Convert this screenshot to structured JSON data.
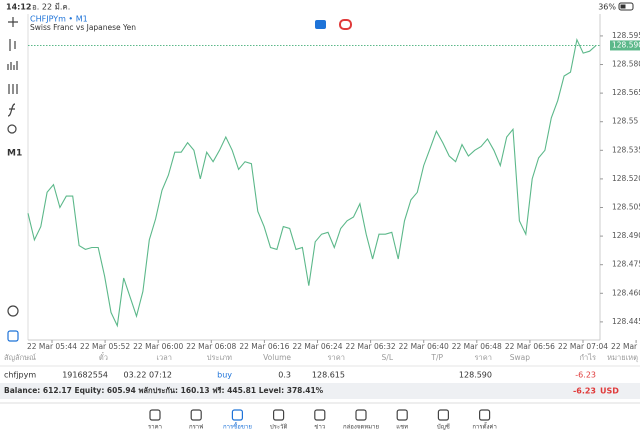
{
  "status_bar": {
    "time": "14:12",
    "date": "อ. 22 มี.ค.",
    "battery": "36%"
  },
  "toolbar": {
    "timeframe": "M1"
  },
  "chart": {
    "type": "line",
    "symbol_title": "CHFJPYm • M1",
    "subtitle": "Swiss Franc vs Japanese Yen",
    "color": "#5cb88a",
    "x_labels": [
      "22 Mar 05:44",
      "22 Mar 05:52",
      "22 Mar 06:00",
      "22 Mar 06:08",
      "22 Mar 06:16",
      "22 Mar 06:24",
      "22 Mar 06:32",
      "22 Mar 06:40",
      "22 Mar 06:48",
      "22 Mar 06:56",
      "22 Mar 07:04",
      "22 Mar 07:12"
    ],
    "values": [
      128.502,
      128.488,
      128.495,
      128.513,
      128.517,
      128.505,
      128.511,
      128.511,
      128.485,
      128.483,
      128.484,
      128.484,
      128.469,
      128.45,
      128.443,
      128.468,
      128.458,
      128.448,
      128.461,
      128.488,
      128.499,
      128.514,
      128.522,
      128.534,
      128.534,
      128.539,
      128.535,
      128.52,
      128.534,
      128.529,
      128.535,
      128.542,
      128.535,
      128.525,
      128.529,
      128.528,
      128.503,
      128.495,
      128.484,
      128.483,
      128.495,
      128.494,
      128.483,
      128.484,
      128.464,
      128.487,
      128.491,
      128.492,
      128.484,
      128.494,
      128.498,
      128.5,
      128.507,
      128.491,
      128.478,
      128.491,
      128.491,
      128.492,
      128.478,
      128.498,
      128.509,
      128.513,
      128.527,
      128.536,
      128.545,
      128.539,
      128.532,
      128.529,
      128.538,
      128.532,
      128.535,
      128.537,
      128.541,
      128.535,
      128.527,
      128.542,
      128.546,
      128.498,
      128.491,
      128.52,
      128.531,
      128.535,
      128.552,
      128.561,
      128.574,
      128.576,
      128.593,
      128.586,
      128.587,
      128.59
    ],
    "ylim": [
      128.4355,
      128.6065
    ],
    "yticks": [
      128.595,
      {
        "value": 128.58,
        "label": "128.580"
      },
      128.565,
      128.55,
      128.535,
      {
        "value": 128.52,
        "label": "128.520"
      },
      128.505,
      {
        "value": 128.49,
        "label": "128.490"
      },
      128.475,
      {
        "value": 128.46,
        "label": "128.460"
      },
      128.445
    ],
    "current_price": {
      "value": 128.59,
      "label": "128.590"
    }
  },
  "table": {
    "headers": [
      "สัญลักษณ์",
      "ตั๋ว",
      "เวลา",
      "ประเภท",
      "Volume",
      "ราคา",
      "S/L",
      "T/P",
      "ราคา",
      "Swap",
      "กำไร",
      "หมายเหตุ"
    ],
    "row": {
      "symbol": "chfjpym",
      "ticket": "191682554",
      "time": "03.22 07:12",
      "type": "buy",
      "volume": "0.3",
      "open_price": "128.615",
      "current_price": "128.590",
      "profit": "-6.23"
    }
  },
  "summary": {
    "text": "Balance: 612.17 Equity: 605.94 พลักประกัน: 160.13 ฟรี: 445.81 Level: 378.41%",
    "profit": "-6.23",
    "currency": "USD"
  },
  "tabs": [
    "ราคา",
    "กราฟ",
    "การซื้อขาย",
    "ประวัติ",
    "ข่าว",
    "กล่องจดหมาย",
    "แชท",
    "บัญชี",
    "การตั้งค่า"
  ]
}
